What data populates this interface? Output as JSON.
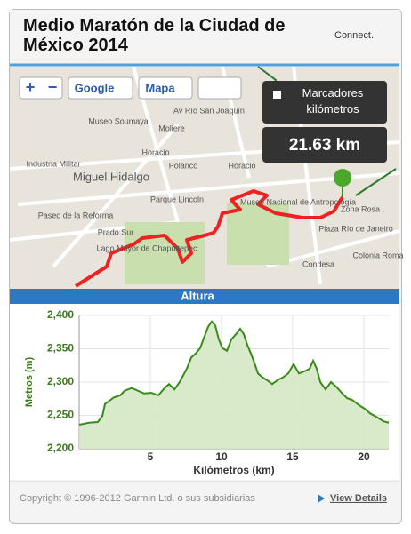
{
  "header": {
    "title": "Medio Maratón de la Ciudad de México 2014",
    "logo": "Connect."
  },
  "map": {
    "controls": {
      "zoom_in": "+",
      "zoom_out": "−",
      "provider": "Google",
      "view": "Mapa"
    },
    "markers_toggle": "Marcadores kilómetros",
    "distance": "21.63 km",
    "labels": [
      "Museo Soumaya",
      "Horacio",
      "Polanco",
      "Horacio",
      "Miguel Hidalgo",
      "Parque Lincoln",
      "Museo Nacional de Antropología",
      "Zona Rosa",
      "Plaza Río de Janeiro",
      "Colonia Roma",
      "Condesa",
      "Lago Mayor de Chapultepec",
      "Paseo de la Reforma",
      "Prado Sur",
      "Industria Militar",
      "Av Río San Joaquín",
      "Moliere"
    ]
  },
  "panel": {
    "title": "Altura"
  },
  "chart_data": {
    "type": "line",
    "xlabel": "Kilómetros (km)",
    "ylabel": "Metros (m)",
    "x": [
      0,
      0.69,
      1.31,
      1.63,
      1.81,
      2.06,
      2.44,
      2.88,
      3.19,
      3.69,
      4.13,
      4.56,
      5.06,
      5.56,
      6,
      6.31,
      6.69,
      7.06,
      7.56,
      7.88,
      8.19,
      8.5,
      8.81,
      9.06,
      9.31,
      9.56,
      9.81,
      10.06,
      10.38,
      10.69,
      11.06,
      11.31,
      11.56,
      11.81,
      12.06,
      12.31,
      12.56,
      12.88,
      13.19,
      13.56,
      13.94,
      14.31,
      14.69,
      15.06,
      15.44,
      15.81,
      16.19,
      16.44,
      16.69,
      16.94,
      17.31,
      17.69,
      18.06,
      18.44,
      18.81,
      19.19,
      19.69,
      20.06,
      20.44,
      20.94,
      21.38,
      21.75
    ],
    "series": [
      {
        "name": "Altura",
        "color": "#3a8a1a",
        "values": [
          2236,
          2239,
          2240,
          2249,
          2267,
          2271,
          2277,
          2280,
          2287,
          2291,
          2287,
          2283,
          2284,
          2280,
          2291,
          2297,
          2289,
          2300,
          2320,
          2337,
          2343,
          2351,
          2369,
          2383,
          2391,
          2385,
          2364,
          2351,
          2347,
          2364,
          2373,
          2380,
          2372,
          2356,
          2343,
          2329,
          2313,
          2307,
          2303,
          2297,
          2303,
          2307,
          2313,
          2327,
          2313,
          2316,
          2320,
          2332,
          2320,
          2300,
          2289,
          2300,
          2293,
          2284,
          2276,
          2273,
          2265,
          2260,
          2253,
          2247,
          2241,
          2239
        ]
      }
    ],
    "xlim": [
      0,
      21.75
    ],
    "ylim": [
      2200,
      2400
    ],
    "xticks": [
      5,
      10,
      15,
      20
    ],
    "yticks": [
      {
        "value": 2200,
        "label": "2,200"
      },
      {
        "value": 2250,
        "label": "2,250"
      },
      {
        "value": 2300,
        "label": "2,300"
      },
      {
        "value": 2350,
        "label": "2,350"
      },
      {
        "value": 2400,
        "label": "2,400"
      }
    ],
    "grid": true
  },
  "footer": {
    "copyright": "Copyright © 1996-2012 Garmin Ltd. o sus subsidiarias",
    "link": "View Details"
  }
}
